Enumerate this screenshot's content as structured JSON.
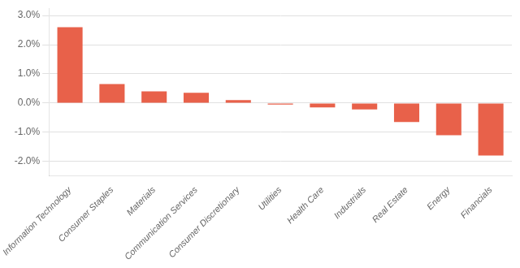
{
  "chart_data": {
    "type": "bar",
    "categories": [
      "Information Technology",
      "Consumer Staples",
      "Materials",
      "Communication Services",
      "Consumer Discretionary",
      "Utilities",
      "Health Care",
      "Industrials",
      "Real Estate",
      "Energy",
      "Financials"
    ],
    "values": [
      2.6,
      0.65,
      0.4,
      0.35,
      0.1,
      -0.05,
      -0.15,
      -0.22,
      -0.65,
      -1.1,
      -1.8
    ],
    "color": "#E8614A",
    "ylim": [
      -2.5,
      3.25
    ],
    "yticks": [
      {
        "value": -2.0,
        "label": "-2.0%"
      },
      {
        "value": -1.0,
        "label": "-1.0%"
      },
      {
        "value": 0.0,
        "label": "0.0%"
      },
      {
        "value": 1.0,
        "label": "1.0%"
      },
      {
        "value": 2.0,
        "label": "2.0%"
      },
      {
        "value": 3.0,
        "label": "3.0%"
      }
    ],
    "grid": true
  }
}
